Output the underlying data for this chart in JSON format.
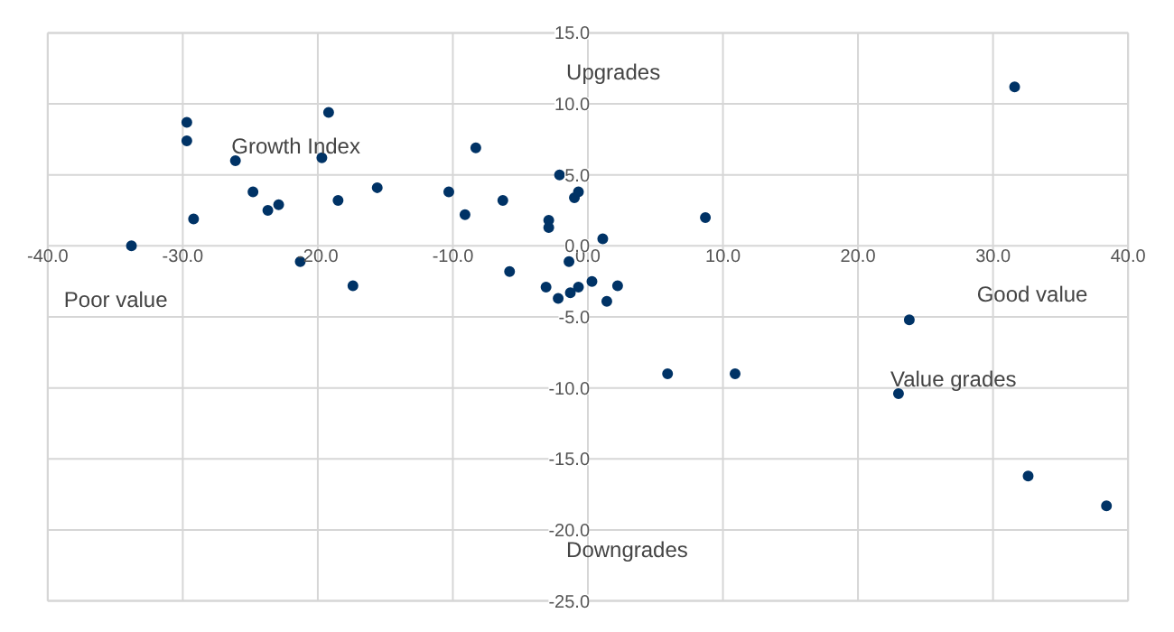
{
  "chart_data": {
    "type": "scatter",
    "marker": "circle",
    "grid": true,
    "x": [
      -33.8,
      -29.7,
      -29.7,
      -29.2,
      -26.1,
      -24.8,
      -23.7,
      -22.9,
      -21.3,
      -19.2,
      -19.7,
      -18.5,
      -17.4,
      -15.6,
      -10.3,
      -9.1,
      -8.3,
      -6.3,
      -5.8,
      -3.1,
      -2.9,
      -2.9,
      -2.2,
      -2.1,
      -1.4,
      -1.3,
      -1.0,
      -0.7,
      -0.7,
      0.3,
      1.1,
      1.4,
      2.2,
      8.7,
      5.9,
      10.9,
      23.8,
      23.0,
      31.6,
      32.6,
      38.4
    ],
    "series": [
      {
        "color": "#003366",
        "values": [
          0.0,
          8.7,
          7.4,
          1.9,
          6.0,
          3.8,
          2.5,
          2.9,
          -1.1,
          9.4,
          6.2,
          3.2,
          -2.8,
          4.1,
          3.8,
          2.2,
          6.9,
          3.2,
          -1.8,
          -2.9,
          1.8,
          1.3,
          -3.7,
          5.0,
          -1.1,
          -3.3,
          3.4,
          3.8,
          -2.9,
          -2.5,
          0.5,
          -3.9,
          -2.8,
          2.0,
          -9.0,
          -9.0,
          -5.2,
          -10.4,
          11.2,
          -16.2,
          -18.3
        ]
      }
    ],
    "xlim": [
      -40,
      40
    ],
    "ylim": [
      -25,
      15
    ],
    "xticks": [
      {
        "value": -40,
        "label": "-40.0"
      },
      {
        "value": -30,
        "label": "-30.0"
      },
      {
        "value": -20,
        "label": "-20.0"
      },
      {
        "value": -10,
        "label": "-10.0"
      },
      {
        "value": 0,
        "label": "0.0"
      },
      {
        "value": 10,
        "label": "10.0"
      },
      {
        "value": 20,
        "label": "20.0"
      },
      {
        "value": 30,
        "label": "30.0"
      },
      {
        "value": 40,
        "label": "40.0"
      }
    ],
    "yticks": [
      {
        "value": -25,
        "label": "-25.0"
      },
      {
        "value": -20,
        "label": "-20.0"
      },
      {
        "value": -15,
        "label": "-15.0"
      },
      {
        "value": -10,
        "label": "-10.0"
      },
      {
        "value": -5,
        "label": "-5.0"
      },
      {
        "value": 0,
        "label": "0.0"
      },
      {
        "value": 5,
        "label": "5.0"
      },
      {
        "value": 10,
        "label": "10.0"
      },
      {
        "value": 15,
        "label": "15.0"
      }
    ],
    "annotations": [
      "Upgrades",
      "Growth Index",
      "Poor value",
      "Good value",
      "Value grades",
      "Downgrades"
    ]
  }
}
